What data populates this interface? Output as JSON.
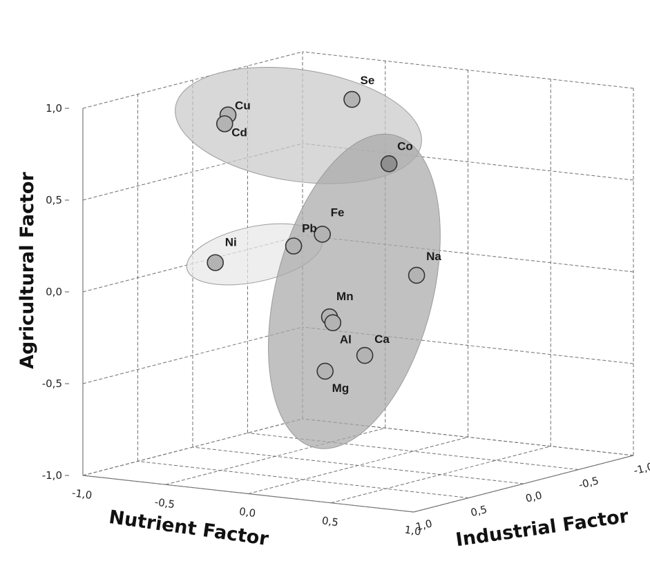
{
  "chart_data": {
    "type": "scatter",
    "title": "",
    "xlabel": "Nutrient Factor",
    "ylabel": "Agricultural Factor",
    "zlabel": "Industrial Factor",
    "xlim": [
      -1.0,
      1.0
    ],
    "ylim": [
      -1.0,
      1.0
    ],
    "zlim": [
      -1.0,
      1.0
    ],
    "x_ticks": [
      "-1,0",
      "-0,5",
      "0,0",
      "0,5",
      "1,0"
    ],
    "y_ticks": [
      "-1,0",
      "-0,5",
      "0,0",
      "0,5",
      "1,0"
    ],
    "z_ticks": [
      "1,0",
      "0,5",
      "0,0",
      "-0,5",
      "-1,0"
    ],
    "grid": true,
    "points": [
      {
        "label": "Cu",
        "nutrient": -0.82,
        "agricultural": 0.82,
        "industrial": -0.05
      },
      {
        "label": "Cd",
        "nutrient": -0.84,
        "agricultural": 0.77,
        "industrial": -0.05
      },
      {
        "label": "Se",
        "nutrient": -0.25,
        "agricultural": 0.92,
        "industrial": -0.32
      },
      {
        "label": "Co",
        "nutrient": 0.12,
        "agricultural": 0.64,
        "industrial": -0.1
      },
      {
        "label": "Fe",
        "nutrient": -0.15,
        "agricultural": 0.26,
        "industrial": 0.1
      },
      {
        "label": "Pb",
        "nutrient": -0.41,
        "agricultural": 0.15,
        "industrial": -0.03
      },
      {
        "label": "Ni",
        "nutrient": -0.89,
        "agricultural": 0.01,
        "industrial": -0.04
      },
      {
        "label": "Na",
        "nutrient": 0.32,
        "agricultural": 0.06,
        "industrial": -0.05
      },
      {
        "label": "Mn",
        "nutrient": -0.12,
        "agricultural": -0.19,
        "industrial": 0.08
      },
      {
        "label": "Al",
        "nutrient": -0.1,
        "agricultural": -0.22,
        "industrial": 0.08
      },
      {
        "label": "Ca",
        "nutrient": 0.06,
        "agricultural": -0.39,
        "industrial": 0.03
      },
      {
        "label": "Mg",
        "nutrient": -0.12,
        "agricultural": -0.48,
        "industrial": 0.12
      }
    ],
    "groups": [
      {
        "members": [
          "Cu",
          "Cd",
          "Se",
          "Co"
        ],
        "color": "#c9c9c9"
      },
      {
        "members": [
          "Ni",
          "Pb"
        ],
        "color": "#e8e8e8"
      },
      {
        "members": [
          "Co",
          "Fe",
          "Na",
          "Mn",
          "Al",
          "Ca",
          "Mg"
        ],
        "color": "#a9a9a9"
      }
    ],
    "colors": {
      "point_fill": "#b3b3b3",
      "point_fill_dark": "#8f8f8f",
      "point_stroke": "#333333"
    }
  }
}
